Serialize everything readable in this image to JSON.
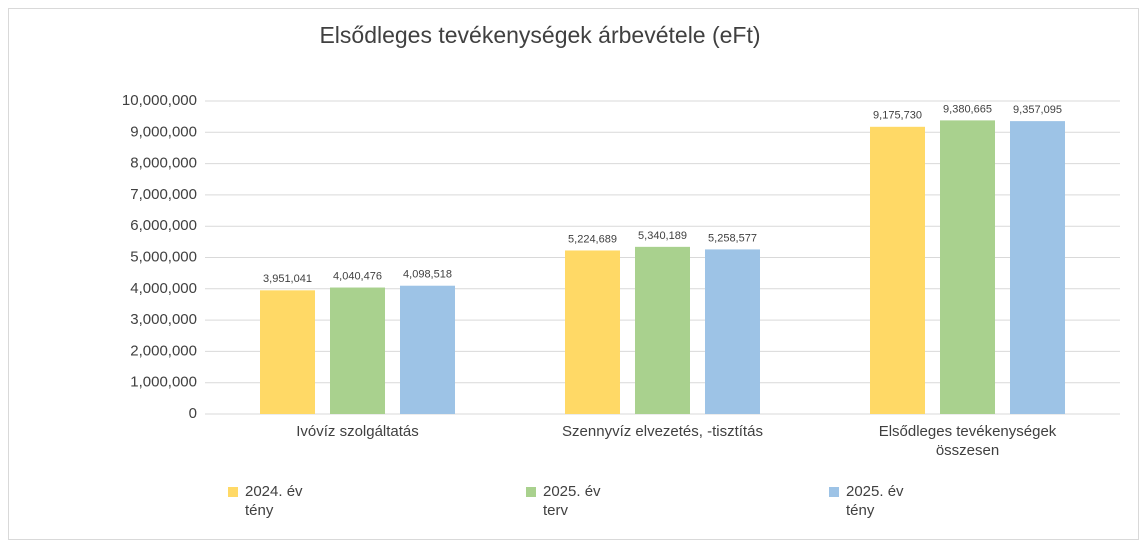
{
  "chart_data": {
    "type": "bar",
    "title": "Elsődleges tevékenységek árbevétele (eFt)",
    "categories": [
      "Ivóvíz szolgáltatás",
      "Szennyvíz elvezetés, -tisztítás",
      "Elsődleges tevékenységek összesen"
    ],
    "series": [
      {
        "name": "2024. év tény",
        "color": "#ffd966",
        "values": [
          3951041,
          5224689,
          9175730
        ],
        "value_labels": [
          "3,951,041",
          "5,224,689",
          "9,175,730"
        ]
      },
      {
        "name": "2025. év terv",
        "color": "#a9d18e",
        "values": [
          4040476,
          5340189,
          9380665
        ],
        "value_labels": [
          "4,040,476",
          "5,340,189",
          "9,380,665"
        ]
      },
      {
        "name": "2025. év tény",
        "color": "#9dc3e6",
        "values": [
          4098518,
          5258577,
          9357095
        ],
        "value_labels": [
          "4,098,518",
          "5,258,577",
          "9,357,095"
        ]
      }
    ],
    "ylim": [
      0,
      10000000
    ],
    "yticks": [
      0,
      {
        "value": 1000000,
        "label": "1,000,000"
      },
      {
        "value": 2000000,
        "label": "2,000,000"
      },
      {
        "value": 3000000,
        "label": "3,000,000"
      },
      {
        "value": 4000000,
        "label": "4,000,000"
      },
      {
        "value": 5000000,
        "label": "5,000,000"
      },
      {
        "value": 6000000,
        "label": "6,000,000"
      },
      {
        "value": 7000000,
        "label": "7,000,000"
      },
      {
        "value": 8000000,
        "label": "8,000,000"
      },
      {
        "value": 9000000,
        "label": "9,000,000"
      },
      {
        "value": 10000000,
        "label": "10,000,000"
      }
    ],
    "grid": true,
    "legend": "bottom"
  }
}
